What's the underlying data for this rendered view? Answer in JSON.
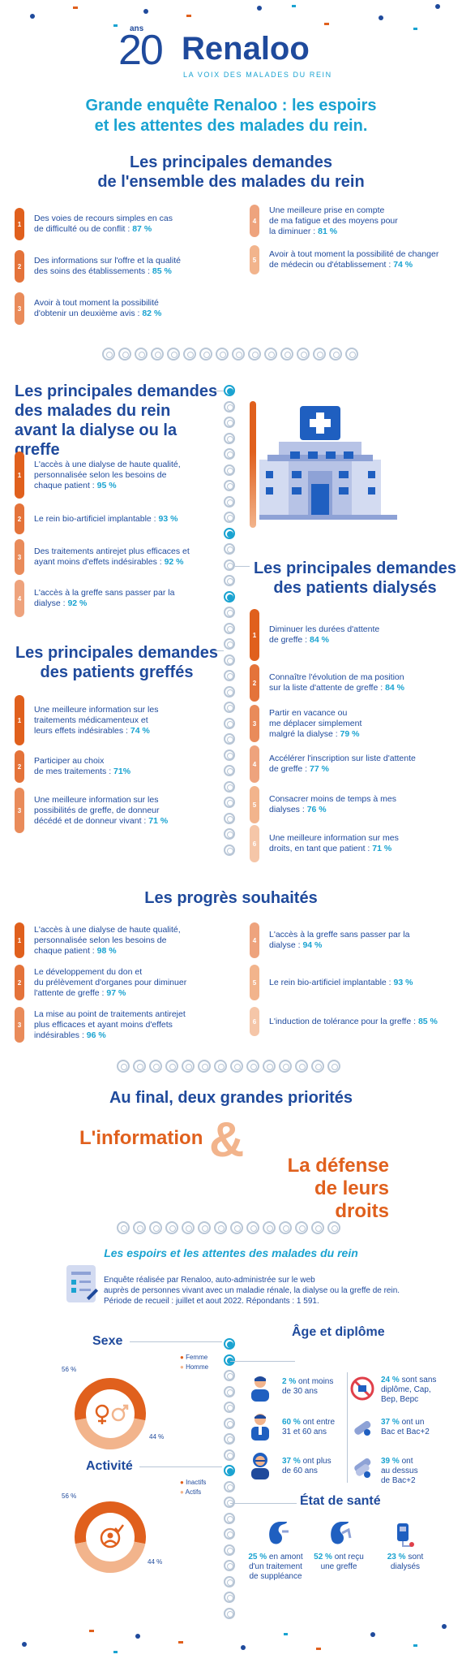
{
  "logo": {
    "anniv_number": "20",
    "anniv_suffix": "ans",
    "name": "Renaloo",
    "tagline": "LA VOIX DES MALADES DU REIN"
  },
  "title": {
    "line1": "Grande enquête Renaloo : les espoirs",
    "line2": "et les attentes des malades du rein."
  },
  "general": {
    "heading1": "Les principales demandes",
    "heading2": "de l'ensemble des malades du rein",
    "items": [
      {
        "n": "1",
        "t1": "Des voies de recours simples en cas",
        "t2": "de difficulté ou de conflit : ",
        "p": "87 %"
      },
      {
        "n": "2",
        "t1": "Des informations sur l'offre et la qualité",
        "t2": "des soins des établissements : ",
        "p": "85 %"
      },
      {
        "n": "3",
        "t1": "Avoir à tout moment la possibilité",
        "t2": "d'obtenir un deuxième avis : ",
        "p": "82 %"
      },
      {
        "n": "4",
        "t1": "Une meilleure prise en compte",
        "t2": "de ma fatigue et des moyens pour",
        "t3": "la diminuer : ",
        "p": "81 %"
      },
      {
        "n": "5",
        "t1": "Avoir à tout moment la possibilité de changer",
        "t2": "de médecin ou d'établissement : ",
        "p": "74 %"
      }
    ]
  },
  "before": {
    "heading1": "Les principales demandes",
    "heading2": "des malades du rein",
    "heading3": "avant la dialyse ou la greffe",
    "items": [
      {
        "n": "1",
        "t1": "L'accès à une dialyse de haute qualité,",
        "t2": "personnalisée selon les besoins de",
        "t3": "chaque patient : ",
        "p": "95 %"
      },
      {
        "n": "2",
        "t1": "Le rein bio-artificiel implantable : ",
        "p": "93 %"
      },
      {
        "n": "3",
        "t1": "Des traitements antirejet plus efficaces et",
        "t2": "ayant moins d'effets indésirables : ",
        "p": "92 %"
      },
      {
        "n": "4",
        "t1": "L'accès à la greffe sans passer par la",
        "t2": "dialyse : ",
        "p": "92 %"
      }
    ]
  },
  "dialysis": {
    "heading1": "Les principales demandes",
    "heading2": "des patients dialysés",
    "items": [
      {
        "n": "1",
        "t1": "Diminuer les durées d'attente",
        "t2": "de greffe : ",
        "p": "84 %"
      },
      {
        "n": "2",
        "t1": "Connaître l'évolution de ma position",
        "t2": "sur la liste d'attente de greffe : ",
        "p": "84 %"
      },
      {
        "n": "3",
        "t1": "Partir en vacance ou",
        "t2": "me déplacer simplement",
        "t3": "malgré la dialyse : ",
        "p": "79 %"
      },
      {
        "n": "4",
        "t1": "Accélérer l'inscription sur liste d'attente",
        "t2": "de greffe : ",
        "p": "77 %"
      },
      {
        "n": "5",
        "t1": "Consacrer moins de temps à mes",
        "t2": "dialyses : ",
        "p": "76 %"
      },
      {
        "n": "6",
        "t1": "Une meilleure information sur mes",
        "t2": "droits, en tant que patient : ",
        "p": "71 %"
      }
    ]
  },
  "grafted": {
    "heading1": "Les principales demandes",
    "heading2": "des patients greffés",
    "items": [
      {
        "n": "1",
        "t1": "Une meilleure information sur les",
        "t2": "traitements médicamenteux et",
        "t3": "leurs effets indésirables : ",
        "p": "74 %"
      },
      {
        "n": "2",
        "t1": "Participer au choix",
        "t2": "de mes traitements : ",
        "p": "71%"
      },
      {
        "n": "3",
        "t1": "Une meilleure information sur les",
        "t2": "possibilités de greffe, de donneur",
        "t3": "décédé et de donneur vivant : ",
        "p": "71 %"
      }
    ]
  },
  "progress": {
    "heading": "Les progrès souhaités",
    "items": [
      {
        "n": "1",
        "t1": "L'accès à une dialyse de haute qualité,",
        "t2": "personnalisée selon les besoins de",
        "t3": "chaque patient : ",
        "p": "98 %"
      },
      {
        "n": "2",
        "t1": "Le développement du don et",
        "t2": "du prélèvement d'organes pour diminuer",
        "t3": "l'attente de greffe : ",
        "p": "97 %"
      },
      {
        "n": "3",
        "t1": "La mise au point de traitements antirejet",
        "t2": "plus efficaces et ayant moins d'effets",
        "t3": "indésirables : ",
        "p": "96 %"
      },
      {
        "n": "4",
        "t1": "L'accès à la greffe sans passer par la",
        "t2": "dialyse : ",
        "p": "94 %"
      },
      {
        "n": "5",
        "t1": "Le rein bio-artificiel implantable : ",
        "p": "93 %"
      },
      {
        "n": "6",
        "t1": "L'induction de tolérance pour la greffe : ",
        "p": "85 %"
      }
    ]
  },
  "final": {
    "heading": "Au final, deux grandes priorités",
    "left": "L'information",
    "amp": "&",
    "right1": "La défense",
    "right2": "de leurs droits"
  },
  "survey": {
    "title": "Les espoirs et les attentes des malades du rein",
    "line1": "Enquête réalisée par Renaloo, auto-administrée sur le web",
    "line2": "auprès de personnes vivant avec un maladie rénale, la dialyse ou la greffe de rein.",
    "line3": "Période de recueil : juillet et aout 2022. Répondants : 1 591."
  },
  "sex": {
    "heading": "Sexe",
    "legend": [
      "Femme",
      "Homme"
    ],
    "values": [
      56,
      44
    ],
    "labels": [
      "56 %",
      "44 %"
    ]
  },
  "activity": {
    "heading": "Activité",
    "legend": [
      "Inactifs",
      "Actifs"
    ],
    "values": [
      56,
      44
    ],
    "labels": [
      "56 %",
      "44 %"
    ]
  },
  "age": {
    "heading": "Âge et diplôme",
    "items": [
      {
        "p": "2 %",
        "t1": " ont moins",
        "t2": "de 30 ans"
      },
      {
        "p": "60 %",
        "t1": " ont entre",
        "t2": "31 et 60 ans"
      },
      {
        "p": "37 %",
        "t1": " ont plus",
        "t2": "de 60 ans"
      }
    ],
    "diploma": [
      {
        "p": "24 %",
        "t1": " sont sans",
        "t2": "diplôme, Cap,",
        "t3": "Bep, Bepc"
      },
      {
        "p": "37 %",
        "t1": " ont un",
        "t2": "Bac et Bac+2"
      },
      {
        "p": "39 %",
        "t1": " ont",
        "t2": "au dessus",
        "t3": "de Bac+2"
      }
    ]
  },
  "health": {
    "heading": "État de santé",
    "items": [
      {
        "p": "25 %",
        "t1": " en amont",
        "t2": "d'un traitement",
        "t3": "de suppléance"
      },
      {
        "p": "52 %",
        "t1": " ont reçu",
        "t2": "une greffe"
      },
      {
        "p": "23 %",
        "t1": " sont",
        "t2": "dialysés"
      }
    ]
  },
  "colors": {
    "orange": "#e0601d",
    "blue": "#1f4a9c",
    "cyan": "#1aa3d1",
    "peach": "#f2b48c"
  }
}
